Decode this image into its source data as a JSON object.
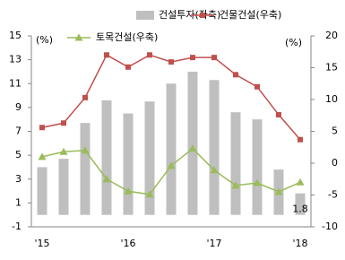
{
  "chart_data": {
    "type": "bar",
    "categories": [
      "'15",
      null,
      null,
      null,
      "'16",
      null,
      null,
      null,
      "'17",
      null,
      null,
      null,
      "'18"
    ],
    "ylabel": "(%)",
    "y2label": "(%)",
    "ylim": [
      -1,
      15
    ],
    "yticks": [
      -1,
      1,
      3,
      5,
      7,
      9,
      11,
      13,
      15
    ],
    "y2lim": [
      -10,
      20
    ],
    "y2ticks": [
      -10,
      -5,
      0,
      5,
      10,
      15,
      20
    ],
    "grid": false,
    "series": [
      {
        "name": "건설투자(좌축)",
        "type": "bar",
        "color": "#bfbfbf",
        "values": [
          4.0,
          4.7,
          7.7,
          9.6,
          8.5,
          9.5,
          11.0,
          12.0,
          11.3,
          8.6,
          8.0,
          3.8,
          1.8
        ]
      },
      {
        "name": "건물건설(우축)",
        "type": "line",
        "marker": "square",
        "axis": "y2",
        "color": "#c0504d",
        "values": [
          5.6,
          6.3,
          10.3,
          17.0,
          15.1,
          17.0,
          15.9,
          16.6,
          16.6,
          13.9,
          12.0,
          7.6,
          3.7
        ]
      },
      {
        "name": "토목건설(우축)",
        "type": "line",
        "marker": "triangle",
        "axis": "y2",
        "color": "#9bbb59",
        "values": [
          1.0,
          1.8,
          2.0,
          -2.5,
          -4.4,
          -4.9,
          -0.4,
          2.3,
          -1.1,
          -3.5,
          -3.1,
          -4.5,
          -3.0
        ]
      }
    ]
  }
}
